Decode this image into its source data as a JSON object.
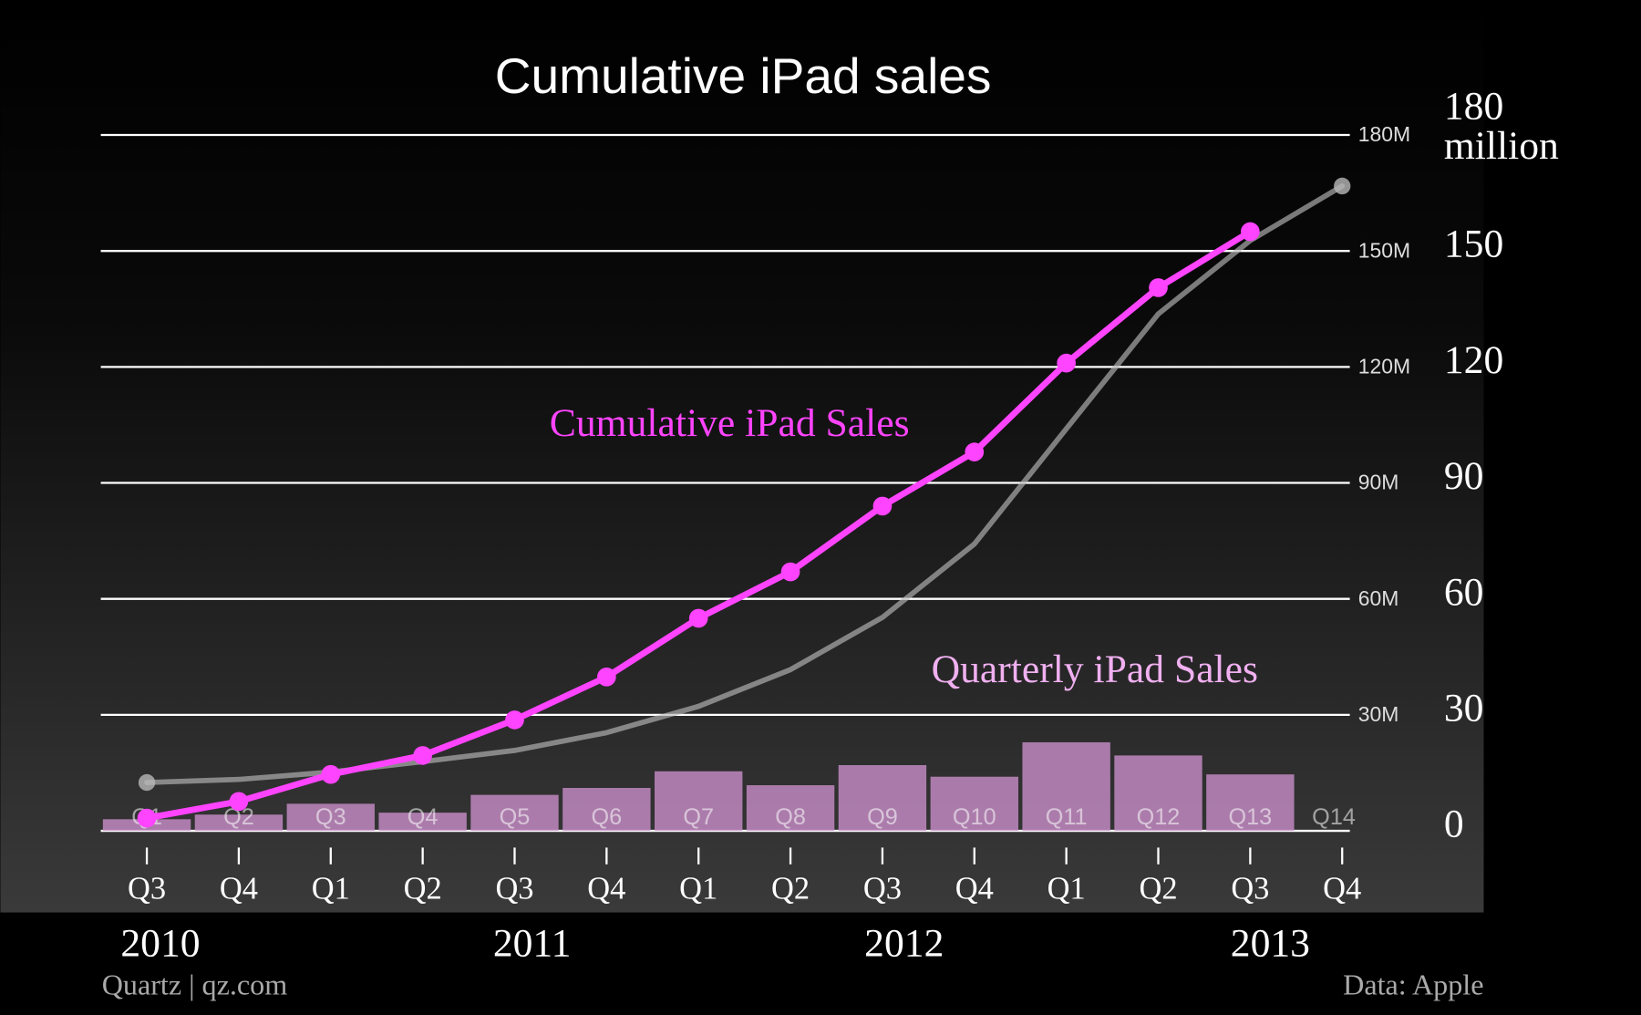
{
  "chart_data": [
    {
      "type": "line",
      "title": "Cumulative iPad sales",
      "categories": [
        "Q3",
        "Q4",
        "Q1",
        "Q2",
        "Q3",
        "Q4",
        "Q1",
        "Q2",
        "Q3",
        "Q4",
        "Q1",
        "Q2",
        "Q3",
        "Q4"
      ],
      "year_labels": [
        "2010",
        "2011",
        "2012",
        "2013"
      ],
      "series": [
        {
          "name": "Cumulative iPad Sales",
          "color": "#ff44ff",
          "values": [
            3.3,
            7.6,
            14.6,
            19.5,
            28.7,
            39.8,
            55,
            67,
            84,
            98,
            121,
            140.5,
            155,
            null
          ]
        },
        {
          "color": "#b8b8b8",
          "values": [
            12.5,
            13.3,
            15.2,
            17.9,
            20.8,
            25.4,
            32.2,
            41.7,
            55.2,
            74.2,
            104,
            133.7,
            152.7,
            166.8
          ]
        }
      ],
      "ylim": [
        0,
        180
      ],
      "yticks": [
        {
          "value": 30,
          "label": "30M"
        },
        {
          "value": 60,
          "label": "60M"
        },
        {
          "value": 90,
          "label": "90M"
        },
        {
          "value": 120,
          "label": "120M"
        },
        {
          "value": 150,
          "label": "150M"
        },
        {
          "value": 180,
          "label": "180M"
        }
      ],
      "y2lim": [
        0,
        180
      ],
      "y2ticks": [
        0,
        30,
        60,
        90,
        120,
        150,
        {
          "value": 180,
          "label": "180 million"
        }
      ],
      "grid": true,
      "source_left": "Quartz | qz.com",
      "source_right": "Data: Apple"
    },
    {
      "type": "bar",
      "categories": [
        "Q1",
        "Q2",
        "Q3",
        "Q4",
        "Q5",
        "Q6",
        "Q7",
        "Q8",
        "Q9",
        "Q10",
        "Q11",
        "Q12",
        "Q13",
        "Q14"
      ],
      "series": [
        {
          "name": "Quarterly iPad Sales",
          "color": "#c98fc9",
          "values": [
            3,
            4.2,
            7,
            4.7,
            9.3,
            11.1,
            15.4,
            11.8,
            17,
            14,
            22.9,
            19.5,
            14.6,
            null
          ]
        }
      ],
      "ylim": [
        0,
        180
      ]
    }
  ]
}
